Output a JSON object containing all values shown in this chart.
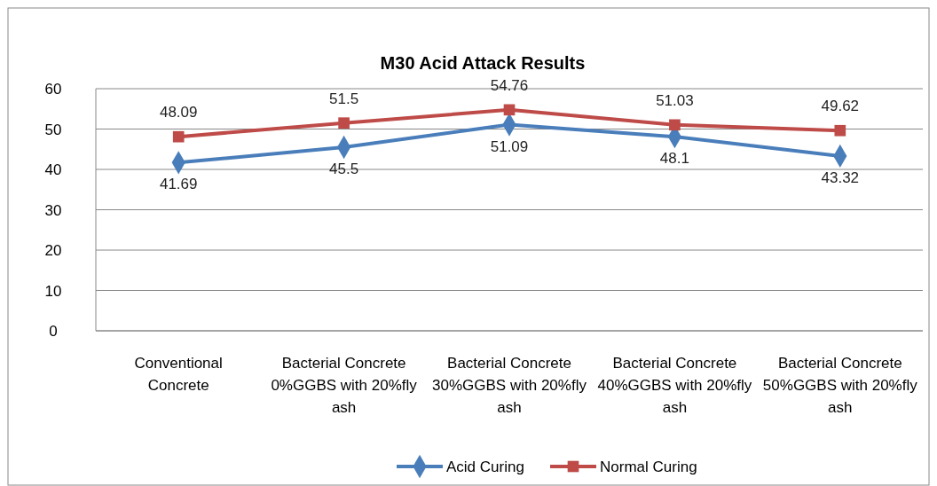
{
  "chart_data": {
    "type": "line",
    "title": "M30 Acid Attack Results",
    "categories": [
      "Conventional Concrete",
      "Bacterial Concrete 0%GGBS with 20%fly ash",
      "Bacterial Concrete 30%GGBS with 20%fly ash",
      "Bacterial Concrete 40%GGBS with 20%fly ash",
      "Bacterial Concrete 50%GGBS with 20%fly ash"
    ],
    "series": [
      {
        "name": "Acid Curing",
        "color": "#4a7ebb",
        "marker": "diamond",
        "values": [
          41.69,
          45.5,
          51.09,
          48.1,
          43.32
        ]
      },
      {
        "name": "Normal Curing",
        "color": "#be4b48",
        "marker": "square",
        "values": [
          48.09,
          51.5,
          54.76,
          51.03,
          49.62
        ]
      }
    ],
    "ylim": [
      0,
      60
    ],
    "yticks": [
      0,
      10,
      20,
      30,
      40,
      50,
      60
    ],
    "grid": "y",
    "legend": "bottom",
    "data_labels": true,
    "line_style": "solid"
  }
}
